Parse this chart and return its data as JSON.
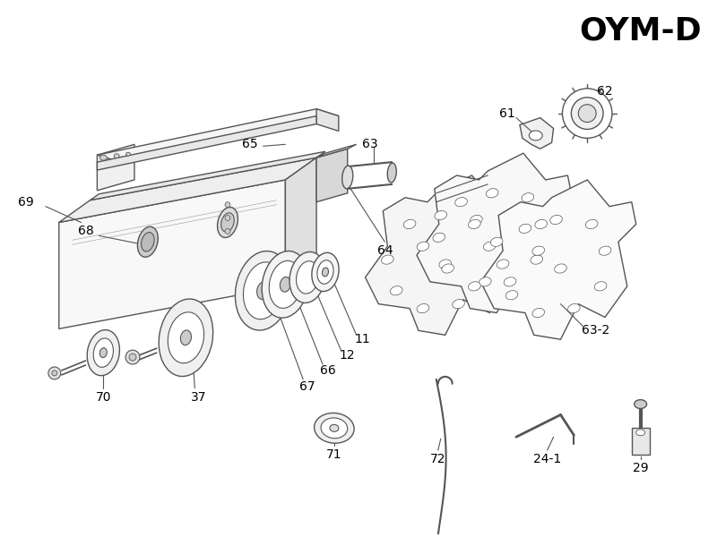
{
  "title": "OYM-D",
  "bg_color": "#ffffff",
  "line_color": "#555555",
  "label_color": "#000000",
  "label_fontsize": 10,
  "title_fontsize": 26,
  "figsize": [
    8.0,
    6.0
  ],
  "dpi": 100
}
